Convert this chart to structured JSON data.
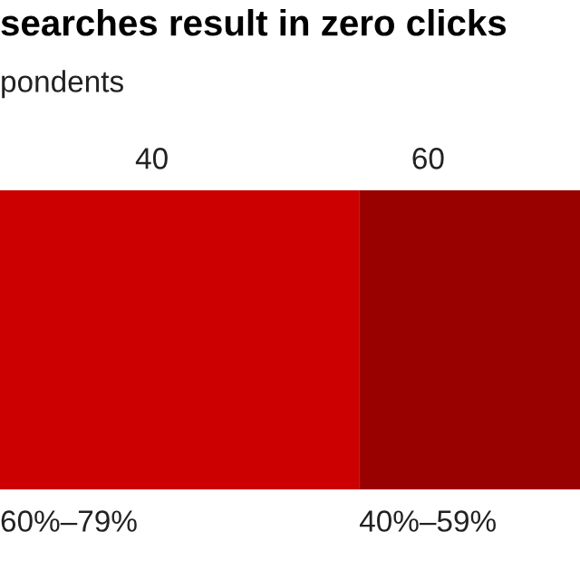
{
  "chart_data": {
    "type": "bar",
    "orientation": "horizontal",
    "title": "searches result in zero clicks",
    "subtitle": "pondents",
    "categories": [
      null
    ],
    "series": [
      {
        "name": "60%–79%",
        "color": "#cc0000",
        "values": [
          26
        ],
        "base": [
          29
        ]
      },
      {
        "name": "40%–59%",
        "color": "#990000",
        "values": [
          16
        ],
        "base": [
          55
        ]
      }
    ],
    "xlim": [
      29,
      71
    ],
    "xticks": [
      40,
      60
    ],
    "grid": false,
    "legend": false
  }
}
